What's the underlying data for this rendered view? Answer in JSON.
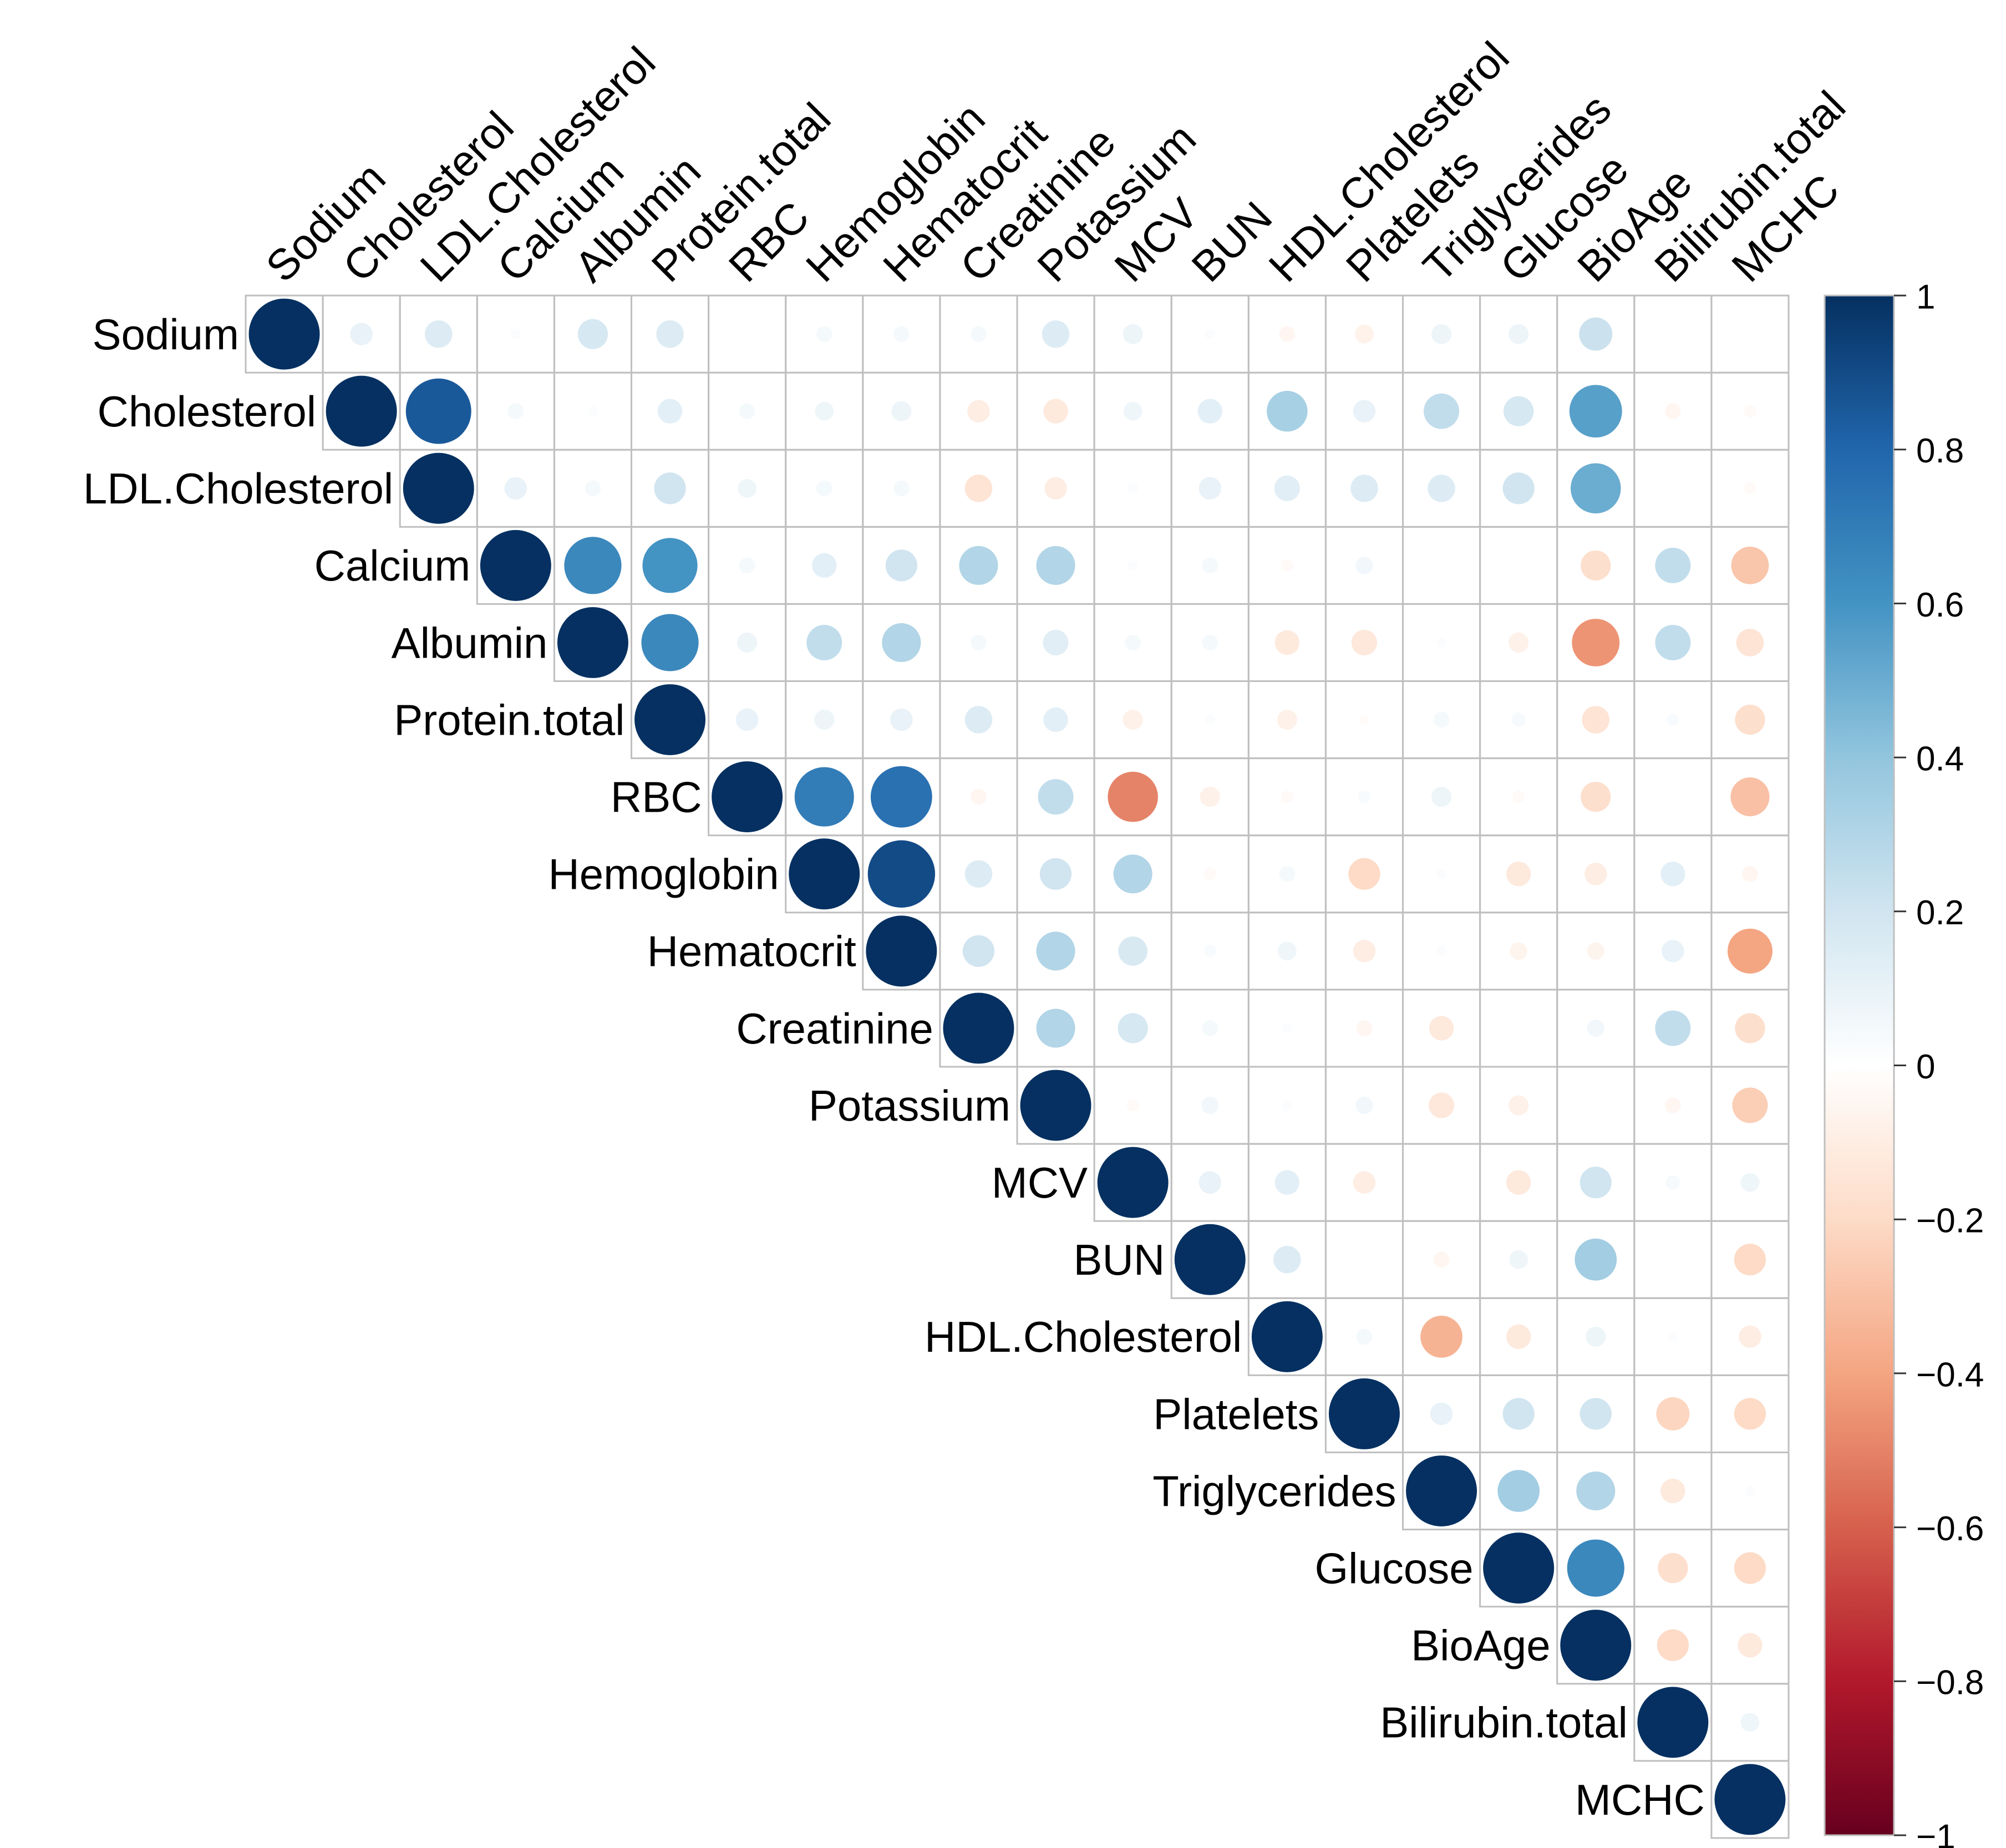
{
  "chart_data": {
    "type": "heatmap",
    "subtype": "correlation-circles-upper-triangle",
    "title": "",
    "variables": [
      "Sodium",
      "Cholesterol",
      "LDL.Cholesterol",
      "Calcium",
      "Albumin",
      "Protein.total",
      "RBC",
      "Hemoglobin",
      "Hematocrit",
      "Creatinine",
      "Potassium",
      "MCV",
      "BUN",
      "HDL.Cholesterol",
      "Platelets",
      "Triglycerides",
      "Glucose",
      "BioAge",
      "Bilirubin.total",
      "MCHC"
    ],
    "matrix": [
      [
        1.0,
        0.1,
        0.15,
        0.02,
        0.18,
        0.15,
        0.0,
        0.05,
        0.05,
        0.05,
        0.15,
        0.08,
        0.02,
        -0.05,
        -0.07,
        0.08,
        0.08,
        0.22,
        0.0,
        0.0
      ],
      [
        null,
        1.0,
        0.85,
        0.05,
        0.02,
        0.12,
        0.05,
        0.07,
        0.08,
        -0.1,
        -0.12,
        0.07,
        0.12,
        0.33,
        0.1,
        0.25,
        0.18,
        0.55,
        -0.05,
        -0.03
      ],
      [
        null,
        null,
        1.0,
        0.1,
        0.05,
        0.2,
        0.07,
        0.05,
        0.05,
        -0.15,
        -0.1,
        0.02,
        0.1,
        0.13,
        0.15,
        0.15,
        0.2,
        0.5,
        0.0,
        -0.03
      ],
      [
        null,
        null,
        null,
        1.0,
        0.65,
        0.6,
        0.05,
        0.12,
        0.2,
        0.3,
        0.3,
        0.02,
        0.05,
        -0.03,
        0.06,
        0.0,
        0.0,
        -0.18,
        0.25,
        -0.28
      ],
      [
        null,
        null,
        null,
        null,
        1.0,
        0.65,
        0.08,
        0.25,
        0.3,
        0.05,
        0.13,
        0.05,
        0.05,
        -0.12,
        -0.13,
        0.02,
        -0.08,
        -0.45,
        0.25,
        -0.15
      ],
      [
        null,
        null,
        null,
        null,
        null,
        1.0,
        0.1,
        0.08,
        0.1,
        0.15,
        0.12,
        -0.08,
        0.02,
        -0.08,
        -0.02,
        0.05,
        0.04,
        -0.15,
        0.03,
        -0.18
      ],
      [
        null,
        null,
        null,
        null,
        null,
        null,
        1.0,
        0.7,
        0.75,
        -0.05,
        0.25,
        -0.5,
        -0.08,
        -0.03,
        0.03,
        0.08,
        -0.03,
        -0.18,
        0.0,
        -0.3
      ],
      [
        null,
        null,
        null,
        null,
        null,
        null,
        null,
        1.0,
        0.9,
        0.15,
        0.2,
        0.3,
        -0.03,
        0.05,
        -0.2,
        0.02,
        -0.12,
        -0.1,
        0.12,
        -0.05
      ],
      [
        null,
        null,
        null,
        null,
        null,
        null,
        null,
        null,
        1.0,
        0.2,
        0.3,
        0.17,
        0.03,
        0.07,
        -0.1,
        0.02,
        -0.06,
        -0.06,
        0.1,
        -0.4
      ],
      [
        null,
        null,
        null,
        null,
        null,
        null,
        null,
        null,
        null,
        1.0,
        0.3,
        0.18,
        0.05,
        0.02,
        -0.05,
        -0.12,
        0.0,
        0.06,
        0.25,
        -0.18
      ],
      [
        null,
        null,
        null,
        null,
        null,
        null,
        null,
        null,
        null,
        null,
        1.0,
        -0.03,
        0.06,
        0.02,
        0.06,
        -0.13,
        -0.08,
        0.0,
        -0.05,
        -0.25
      ],
      [
        null,
        null,
        null,
        null,
        null,
        null,
        null,
        null,
        null,
        null,
        null,
        1.0,
        0.1,
        0.12,
        -0.1,
        0.0,
        -0.12,
        0.2,
        0.04,
        0.07
      ],
      [
        null,
        null,
        null,
        null,
        null,
        null,
        null,
        null,
        null,
        null,
        null,
        null,
        1.0,
        0.15,
        0.0,
        -0.05,
        0.07,
        0.35,
        0.0,
        -0.2
      ],
      [
        null,
        null,
        null,
        null,
        null,
        null,
        null,
        null,
        null,
        null,
        null,
        null,
        null,
        1.0,
        0.05,
        -0.35,
        -0.12,
        0.08,
        0.02,
        -0.1
      ],
      [
        null,
        null,
        null,
        null,
        null,
        null,
        null,
        null,
        null,
        null,
        null,
        null,
        null,
        null,
        1.0,
        0.1,
        0.2,
        0.2,
        -0.22,
        -0.2
      ],
      [
        null,
        null,
        null,
        null,
        null,
        null,
        null,
        null,
        null,
        null,
        null,
        null,
        null,
        null,
        null,
        1.0,
        0.35,
        0.3,
        -0.12,
        0.02
      ],
      [
        null,
        null,
        null,
        null,
        null,
        null,
        null,
        null,
        null,
        null,
        null,
        null,
        null,
        null,
        null,
        null,
        1.0,
        0.65,
        -0.18,
        -0.2
      ],
      [
        null,
        null,
        null,
        null,
        null,
        null,
        null,
        null,
        null,
        null,
        null,
        null,
        null,
        null,
        null,
        null,
        null,
        1.0,
        -0.2,
        -0.12
      ],
      [
        null,
        null,
        null,
        null,
        null,
        null,
        null,
        null,
        null,
        null,
        null,
        null,
        null,
        null,
        null,
        null,
        null,
        null,
        1.0,
        0.07
      ],
      [
        null,
        null,
        null,
        null,
        null,
        null,
        null,
        null,
        null,
        null,
        null,
        null,
        null,
        null,
        null,
        null,
        null,
        null,
        null,
        1.0
      ]
    ],
    "colorbar": {
      "range": [
        -1,
        1
      ],
      "ticks": [
        1,
        0.8,
        0.6,
        0.4,
        0.2,
        0,
        -0.2,
        -0.4,
        -0.6,
        -0.8,
        -1
      ],
      "tick_labels": [
        "1",
        "0.8",
        "0.6",
        "0.4",
        "0.2",
        "0",
        "−0.2",
        "−0.4",
        "−0.6",
        "−0.8",
        "−1"
      ],
      "position": "right"
    },
    "colors": {
      "negative_extreme": "#67001F",
      "negative_strong": "#B2182B",
      "negative_mid": "#D6604D",
      "negative_light": "#F4A582",
      "negative_faint": "#FDDBC7",
      "neutral": "#FFFFFF",
      "positive_faint": "#D1E5F0",
      "positive_light": "#92C5DE",
      "positive_mid": "#4393C3",
      "positive_strong": "#2166AC",
      "positive_extreme": "#053061",
      "grid": "#BFBFBF"
    }
  }
}
